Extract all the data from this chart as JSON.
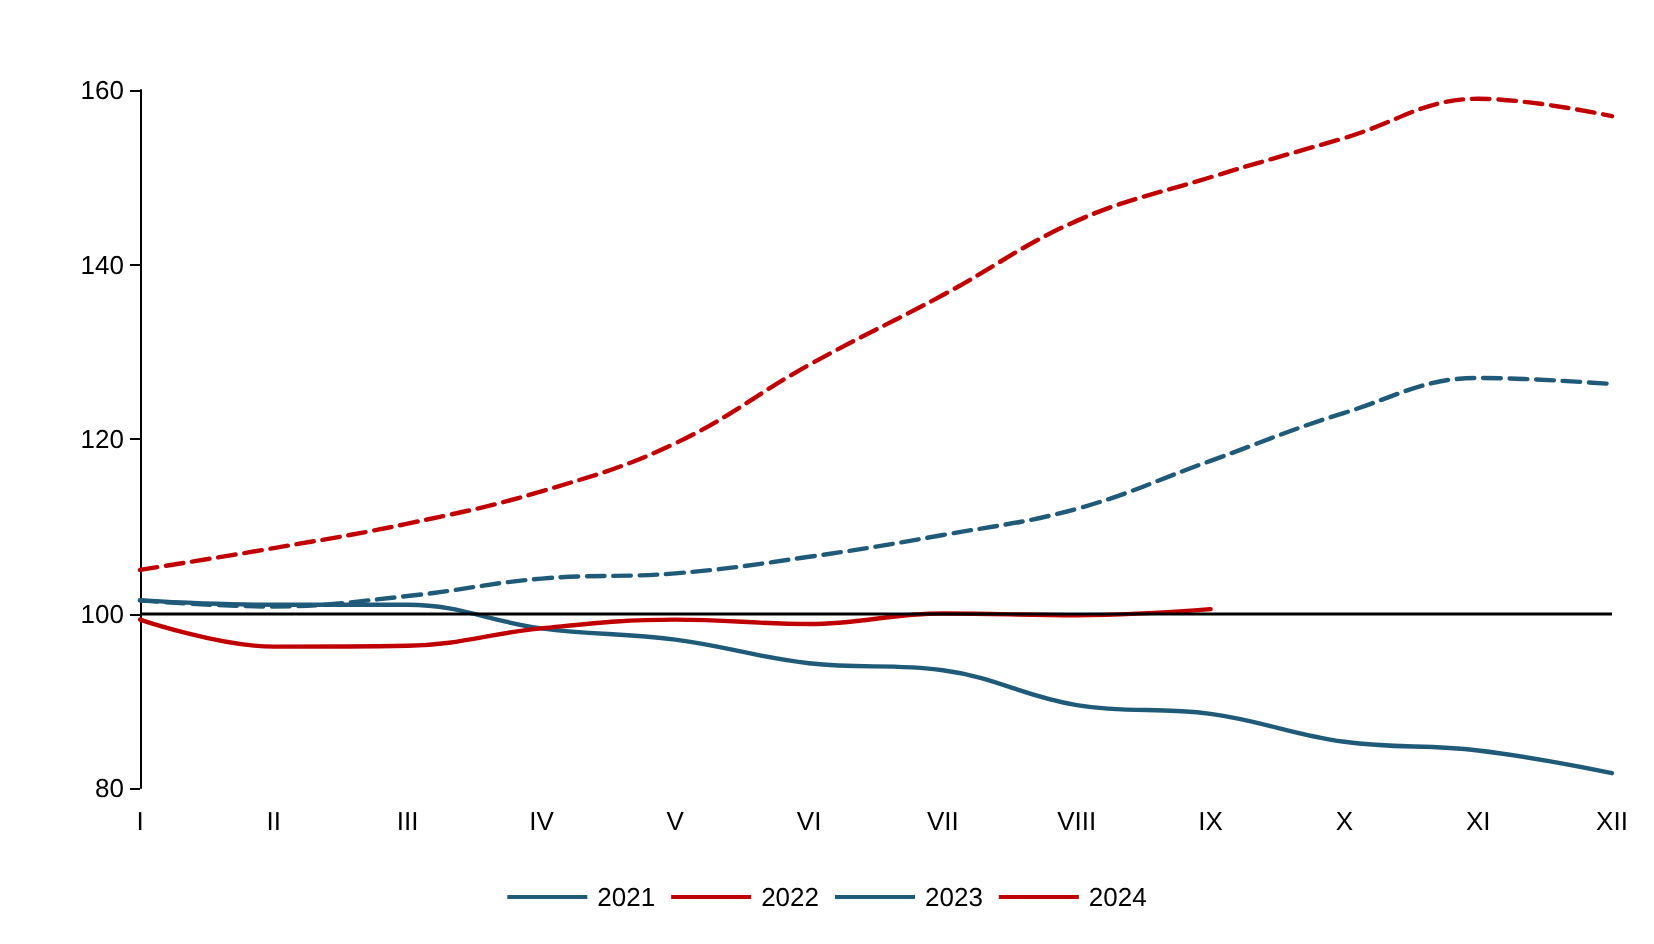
{
  "chart_data": {
    "type": "line",
    "categories": [
      "I",
      "II",
      "III",
      "IV",
      "V",
      "VI",
      "VII",
      "VIII",
      "IX",
      "X",
      "XI",
      "XII"
    ],
    "series": [
      {
        "name": "2021",
        "color": "#1f5a78",
        "line_style": "dashed",
        "values": [
          101.5,
          100.8,
          102,
          104,
          104.6,
          106.5,
          109,
          112,
          117.5,
          123,
          127,
          126.3
        ]
      },
      {
        "name": "2022",
        "color": "#c00000",
        "line_style": "dashed",
        "values": [
          105,
          107.5,
          110.3,
          114,
          119.5,
          128.5,
          136.5,
          145,
          150,
          154.5,
          159,
          157
        ]
      },
      {
        "name": "2023",
        "color": "#1f5a78",
        "line_style": "solid",
        "values": [
          101.5,
          101,
          101,
          98.3,
          97,
          94.3,
          93.5,
          89.5,
          88.5,
          85.3,
          84.3,
          81.7
        ]
      },
      {
        "name": "2024",
        "color": "#c00000",
        "line_style": "solid",
        "values": [
          99.3,
          96.2,
          96.3,
          98.3,
          99.3,
          98.8,
          100,
          99.8,
          100.5,
          null,
          null,
          null
        ]
      }
    ],
    "ylim": [
      80,
      160
    ],
    "yticks": [
      80,
      100,
      120,
      140,
      160
    ],
    "grid": false,
    "legend": "bottom",
    "marker": "none",
    "ref_lines": [
      {
        "axis": "y",
        "value": 100,
        "color": "#000000"
      }
    ]
  }
}
